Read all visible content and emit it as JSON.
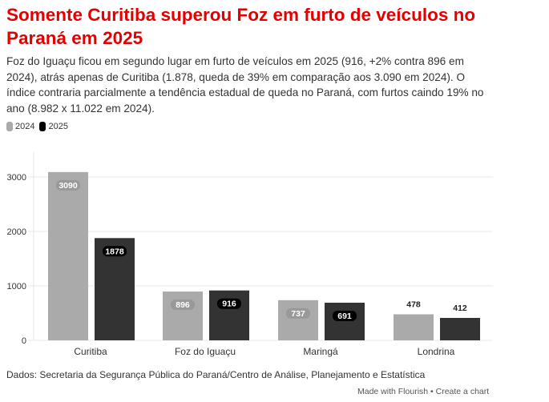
{
  "header": {
    "title": "Somente Curitiba superou Foz em furto de veículos no Paraná em 2025",
    "subtitle": "Foz do Iguaçu ficou em segundo lugar em furto de veículos em 2025 (916, +2% contra 896 em 2024), atrás apenas de Curitiba (1.878, queda de 39% em comparação aos 3.090 em 2024). O índice contraria parcialmente a tendência estadual de queda no Paraná, com furtos caindo 19% no ano (8.982 x 11.022 em 2024)."
  },
  "footer": {
    "source": "Dados: Secretaria da Segurança Pública do Paraná/Centro de Análise, Planejamento e Estatística",
    "credit": "Made with Flourish • Create a chart"
  },
  "chart_data": {
    "type": "bar",
    "title": "",
    "xlabel": "",
    "ylabel": "",
    "ylim": [
      0,
      3300
    ],
    "yticks": [
      "0",
      "1000",
      "2000",
      "3000"
    ],
    "categories": [
      "Curitiba",
      "Foz do Iguaçu",
      "Maringá",
      "Londrina"
    ],
    "series": [
      {
        "name": "2024",
        "color": "#aaaaaa",
        "values": [
          3090,
          896,
          737,
          478
        ]
      },
      {
        "name": "2025",
        "color": "#333333",
        "values": [
          1878,
          916,
          691,
          412
        ]
      }
    ],
    "legend": "top-left",
    "grid": true
  }
}
